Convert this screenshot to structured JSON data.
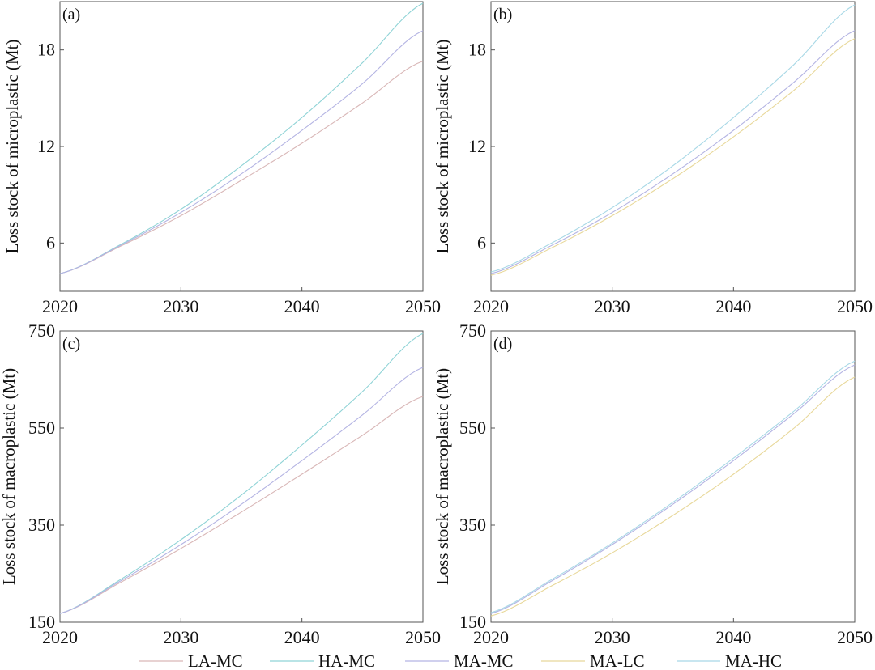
{
  "chart_data": [
    {
      "panel": "(a)",
      "type": "line",
      "ylabel": "Loss stock of microplastic (Mt)",
      "xlabel": "",
      "xlim": [
        2020,
        2050
      ],
      "ylim": [
        3,
        21
      ],
      "xticks": [
        "2020",
        "2030",
        "2040",
        "2050"
      ],
      "yticks": [
        "6",
        "12",
        "18"
      ],
      "grid": false,
      "series": [
        {
          "name": "LA-MC",
          "color": "#d9b7b7",
          "x": [
            2020,
            2025,
            2030,
            2035,
            2040,
            2045,
            2050
          ],
          "y": [
            4.1,
            5.8,
            7.7,
            9.9,
            12.2,
            14.7,
            17.3
          ]
        },
        {
          "name": "HA-MC",
          "color": "#8fd3d6",
          "x": [
            2020,
            2025,
            2030,
            2035,
            2040,
            2045,
            2050
          ],
          "y": [
            4.1,
            5.9,
            8.1,
            10.8,
            13.8,
            17.2,
            20.9
          ]
        },
        {
          "name": "MA-MC",
          "color": "#b4b4e3",
          "x": [
            2020,
            2025,
            2030,
            2035,
            2040,
            2045,
            2050
          ],
          "y": [
            4.1,
            5.85,
            7.9,
            10.3,
            13.0,
            15.9,
            19.2
          ]
        }
      ]
    },
    {
      "panel": "(b)",
      "type": "line",
      "ylabel": "Loss stock of microplastic (Mt)",
      "xlabel": "",
      "xlim": [
        2020,
        2050
      ],
      "ylim": [
        3,
        21
      ],
      "xticks": [
        "2020",
        "2030",
        "2040",
        "2050"
      ],
      "yticks": [
        "6",
        "12",
        "18"
      ],
      "grid": false,
      "series": [
        {
          "name": "MA-LC",
          "color": "#e8d89a",
          "x": [
            2020,
            2025,
            2030,
            2035,
            2040,
            2045,
            2050
          ],
          "y": [
            4.0,
            5.7,
            7.7,
            10.0,
            12.6,
            15.5,
            18.7
          ]
        },
        {
          "name": "MA-MC",
          "color": "#b4b4e3",
          "x": [
            2020,
            2025,
            2030,
            2035,
            2040,
            2045,
            2050
          ],
          "y": [
            4.1,
            5.85,
            7.9,
            10.3,
            13.0,
            16.0,
            19.2
          ]
        },
        {
          "name": "MA-HC",
          "color": "#a8d8e6",
          "x": [
            2020,
            2025,
            2030,
            2035,
            2040,
            2045,
            2050
          ],
          "y": [
            4.2,
            6.0,
            8.2,
            10.8,
            13.8,
            17.1,
            20.8
          ]
        }
      ]
    },
    {
      "panel": "(c)",
      "type": "line",
      "ylabel": "Loss stock of macroplastic (Mt)",
      "xlabel": "",
      "xlim": [
        2020,
        2050
      ],
      "ylim": [
        150,
        750
      ],
      "xticks": [
        "2020",
        "2030",
        "2040",
        "2050"
      ],
      "yticks": [
        "150",
        "350",
        "550",
        "750"
      ],
      "grid": false,
      "series": [
        {
          "name": "LA-MC",
          "color": "#d9b7b7",
          "x": [
            2020,
            2025,
            2030,
            2035,
            2040,
            2045,
            2050
          ],
          "y": [
            168,
            232,
            302,
            377,
            455,
            535,
            615
          ]
        },
        {
          "name": "HA-MC",
          "color": "#8fd3d6",
          "x": [
            2020,
            2025,
            2030,
            2035,
            2040,
            2045,
            2050
          ],
          "y": [
            168,
            238,
            320,
            412,
            515,
            625,
            745
          ]
        },
        {
          "name": "MA-MC",
          "color": "#b4b4e3",
          "x": [
            2020,
            2025,
            2030,
            2035,
            2040,
            2045,
            2050
          ],
          "y": [
            168,
            235,
            310,
            393,
            483,
            577,
            675
          ]
        }
      ]
    },
    {
      "panel": "(d)",
      "type": "line",
      "ylabel": "Loss stock of macroplastic (Mt)",
      "xlabel": "",
      "xlim": [
        2020,
        2050
      ],
      "ylim": [
        150,
        750
      ],
      "xticks": [
        "2020",
        "2030",
        "2040",
        "2050"
      ],
      "yticks": [
        "150",
        "350",
        "550",
        "750"
      ],
      "grid": false,
      "series": [
        {
          "name": "MA-LC",
          "color": "#e8d89a",
          "x": [
            2020,
            2025,
            2030,
            2035,
            2040,
            2045,
            2050
          ],
          "y": [
            163,
            225,
            293,
            370,
            455,
            550,
            655
          ]
        },
        {
          "name": "MA-MC",
          "color": "#b4b4e3",
          "x": [
            2020,
            2025,
            2030,
            2035,
            2040,
            2045,
            2050
          ],
          "y": [
            168,
            235,
            310,
            393,
            483,
            580,
            680
          ]
        },
        {
          "name": "MA-HC",
          "color": "#a8d8e6",
          "x": [
            2020,
            2025,
            2030,
            2035,
            2040,
            2045,
            2050
          ],
          "y": [
            170,
            238,
            313,
            397,
            488,
            585,
            688
          ]
        }
      ]
    }
  ],
  "legend": {
    "placement": "bottom",
    "items": [
      {
        "label": "LA-MC",
        "color": "#d9b7b7"
      },
      {
        "label": "HA-MC",
        "color": "#8fd3d6"
      },
      {
        "label": "MA-MC",
        "color": "#b4b4e3"
      },
      {
        "label": "MA-LC",
        "color": "#e8d89a"
      },
      {
        "label": "MA-HC",
        "color": "#a8d8e6"
      }
    ]
  }
}
